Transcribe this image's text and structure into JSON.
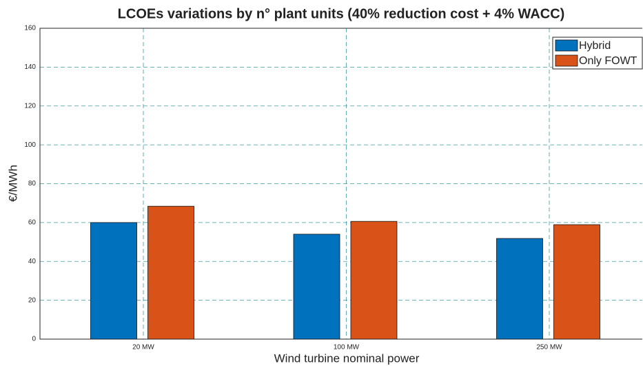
{
  "chart_data": {
    "type": "bar",
    "title": "LCOEs variations by n° plant units (40% reduction cost + 4% WACC)",
    "x_label": "Wind turbine nominal power",
    "y_label": "€/MWh",
    "categories": [
      "20 MW",
      "100 MW",
      "250 MW"
    ],
    "series": [
      {
        "name": "Hybrid",
        "color": "#0072bd",
        "values": [
          60,
          54,
          51.8
        ]
      },
      {
        "name": "Only FOWT",
        "color": "#d95319",
        "values": [
          68.4,
          60.6,
          58.9
        ]
      }
    ],
    "ylim": [
      0,
      160
    ],
    "yticks": [
      0,
      20,
      40,
      60,
      80,
      100,
      120,
      140,
      160
    ],
    "grid": true,
    "legend": "upper right"
  }
}
